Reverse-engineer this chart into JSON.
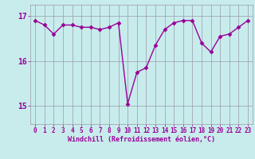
{
  "x": [
    0,
    1,
    2,
    3,
    4,
    5,
    6,
    7,
    8,
    9,
    10,
    11,
    12,
    13,
    14,
    15,
    16,
    17,
    18,
    19,
    20,
    21,
    22,
    23
  ],
  "y": [
    16.9,
    16.8,
    16.6,
    16.8,
    16.8,
    16.75,
    16.75,
    16.7,
    16.75,
    16.85,
    15.05,
    15.75,
    15.85,
    16.35,
    16.7,
    16.85,
    16.9,
    16.9,
    16.4,
    16.2,
    16.55,
    16.6,
    16.75,
    16.9
  ],
  "line_color": "#990099",
  "marker": "D",
  "markersize": 2.5,
  "background_color": "#c8ecec",
  "grid_color": "#9999aa",
  "xlabel": "Windchill (Refroidissement éolien,°C)",
  "ylabel_ticks": [
    15,
    16,
    17
  ],
  "ylim": [
    14.6,
    17.25
  ],
  "xlim": [
    -0.5,
    23.5
  ],
  "linewidth": 1.0,
  "tick_fontsize": 5.5,
  "xlabel_fontsize": 6.0
}
